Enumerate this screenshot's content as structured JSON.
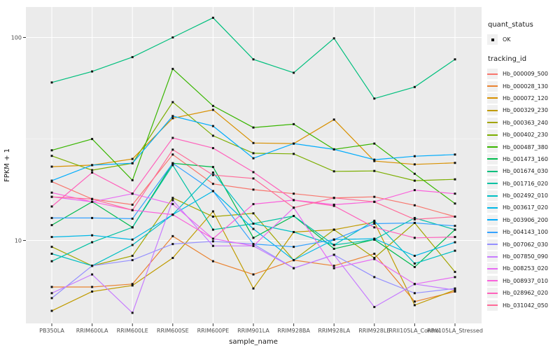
{
  "chart_data": {
    "type": "line",
    "title": "",
    "xlabel": "sample_name",
    "ylabel": "FPKM + 1",
    "y_scale": "log10",
    "y_ticks": [
      100,
      10
    ],
    "ylim": [
      3.9,
      145
    ],
    "grid": true,
    "legend_position": "right",
    "marker": "black-square",
    "categories": [
      "PB350LA",
      "RRIM600LA",
      "RRIM600LE",
      "RRIM600SE",
      "RRIM600PE",
      "RRIM901LA",
      "RRIM928BA",
      "RRIM928LA",
      "RRIM928LE",
      "RRII105LA_Control",
      "RRII105LA_Stressed"
    ],
    "series": [
      {
        "name": "Hb_000009_500",
        "color": "#F8766D",
        "values": [
          19.5,
          16.0,
          15.0,
          26.5,
          19.0,
          17.8,
          17.0,
          16.2,
          16.4,
          14.9,
          13.1
        ]
      },
      {
        "name": "Hb_000028_130",
        "color": "#EA8331",
        "values": [
          5.9,
          5.9,
          6.1,
          10.5,
          7.9,
          6.8,
          8.0,
          7.5,
          8.6,
          5.0,
          5.6
        ]
      },
      {
        "name": "Hb_000072_120",
        "color": "#D89000",
        "values": [
          23.1,
          23.5,
          25.2,
          40.0,
          44.0,
          30.2,
          30.0,
          39.4,
          24.6,
          23.7,
          24.1
        ]
      },
      {
        "name": "Hb_000329_230",
        "color": "#C09B00",
        "values": [
          4.5,
          5.6,
          6.0,
          8.2,
          13.9,
          5.8,
          11.0,
          11.3,
          12.3,
          4.8,
          5.7
        ]
      },
      {
        "name": "Hb_000363_240",
        "color": "#A3A500",
        "values": [
          9.3,
          7.5,
          8.4,
          16.2,
          13.1,
          13.6,
          8.0,
          11.3,
          8.2,
          12.2,
          7.0
        ]
      },
      {
        "name": "Hb_000402_230",
        "color": "#7CAE00",
        "values": [
          26.1,
          22.2,
          24.0,
          48.0,
          32.8,
          26.9,
          26.7,
          21.9,
          22.0,
          19.7,
          20.0
        ]
      },
      {
        "name": "Hb_000487_380",
        "color": "#39B600",
        "values": [
          27.8,
          31.6,
          19.8,
          70.0,
          46.0,
          36.0,
          37.4,
          28.1,
          30.0,
          21.3,
          15.2
        ]
      },
      {
        "name": "Hb_001473_160",
        "color": "#00BB4E",
        "values": [
          11.9,
          15.5,
          11.6,
          24.0,
          23.0,
          10.3,
          13.2,
          9.1,
          10.1,
          7.4,
          11.3
        ]
      },
      {
        "name": "Hb_001674_030",
        "color": "#00BF7D",
        "values": [
          60,
          68,
          80,
          100,
          125,
          78,
          67,
          99,
          50,
          57,
          78
        ]
      },
      {
        "name": "Hb_001716_020",
        "color": "#00C1A3",
        "values": [
          7.9,
          9.8,
          11.6,
          23.5,
          11.3,
          12.1,
          13.2,
          9.5,
          10.1,
          12.9,
          11.3
        ]
      },
      {
        "name": "Hb_002492_010",
        "color": "#00BFC4",
        "values": [
          8.6,
          7.5,
          9.5,
          13.4,
          21.6,
          12.1,
          11.0,
          9.5,
          12.5,
          7.7,
          8.9
        ]
      },
      {
        "name": "Hb_003617_020",
        "color": "#00B8E7",
        "values": [
          10.4,
          10.6,
          10.1,
          13.4,
          17.5,
          11.4,
          8.0,
          10.1,
          10.2,
          8.4,
          9.8
        ]
      },
      {
        "name": "Hb_003906_200",
        "color": "#00ACFC",
        "values": [
          19.7,
          23.5,
          24.0,
          41.0,
          36.6,
          25.4,
          30.0,
          28.1,
          25.0,
          26.0,
          26.5
        ]
      },
      {
        "name": "Hb_004143_100",
        "color": "#35A2FF",
        "values": [
          12.9,
          12.9,
          12.8,
          24.0,
          17.5,
          9.6,
          9.3,
          10.1,
          12.1,
          12.2,
          11.8
        ]
      },
      {
        "name": "Hb_007062_030",
        "color": "#9590FF",
        "values": [
          5.2,
          7.5,
          8.0,
          9.6,
          9.9,
          9.6,
          7.3,
          8.5,
          6.6,
          5.5,
          5.8
        ]
      },
      {
        "name": "Hb_007850_090",
        "color": "#C77CFF",
        "values": [
          5.5,
          6.8,
          4.4,
          15.8,
          9.4,
          9.4,
          7.3,
          8.5,
          4.7,
          6.1,
          5.7
        ]
      },
      {
        "name": "Hb_008253_020",
        "color": "#E76BF3",
        "values": [
          16.4,
          15.5,
          17.0,
          15.1,
          10.2,
          9.4,
          14.5,
          7.3,
          8.1,
          6.1,
          6.6
        ]
      },
      {
        "name": "Hb_008937_010",
        "color": "#FA62DB",
        "values": [
          17.2,
          15.5,
          14.1,
          13.4,
          10.2,
          15.1,
          15.8,
          15.0,
          15.5,
          17.7,
          17.0
        ]
      },
      {
        "name": "Hb_028962_020",
        "color": "#FF62BC",
        "values": [
          14.7,
          21.6,
          17.0,
          32.0,
          28.5,
          21.7,
          15.8,
          14.8,
          11.6,
          10.3,
          10.4
        ]
      },
      {
        "name": "Hb_031042_050",
        "color": "#FF6A98",
        "values": [
          16.4,
          16.0,
          14.1,
          28.0,
          21.0,
          20.2,
          14.5,
          16.2,
          15.5,
          12.7,
          13.1
        ]
      }
    ],
    "legend": {
      "quant_status": {
        "title": "quant_status",
        "items": [
          {
            "label": "OK",
            "marker": "black-square"
          }
        ]
      },
      "tracking_id": {
        "title": "tracking_id"
      }
    },
    "colors": {
      "panel_background": "#EBEBEB",
      "gridline": "#FFFFFF",
      "tick_label": "#4D4D4D",
      "axis_title": "#1a1a1a",
      "marker": "#111111"
    }
  }
}
